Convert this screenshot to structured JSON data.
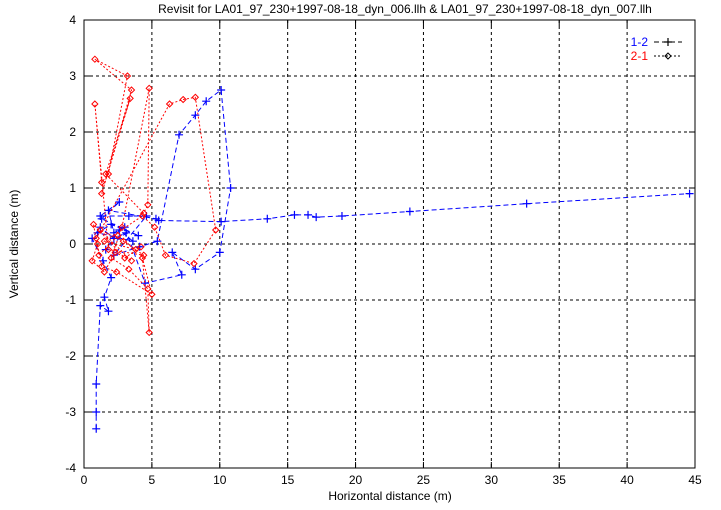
{
  "chart_data": {
    "type": "line",
    "title": "Revisit for LA01_97_230+1997-08-18_dyn_006.llh & LA01_97_230+1997-08-18_dyn_007.llh",
    "xlabel": "Horizontal distance (m)",
    "ylabel": "Vertical distance (m)",
    "xlim": [
      0,
      45
    ],
    "ylim": [
      -4,
      4
    ],
    "xticks": [
      0,
      5,
      10,
      15,
      20,
      25,
      30,
      35,
      40,
      45
    ],
    "yticks": [
      -4,
      -3,
      -2,
      -1,
      0,
      1,
      2,
      3,
      4
    ],
    "grid": true,
    "legend_position": "top-right",
    "series": [
      {
        "name": "1-2",
        "color": "#0000ff",
        "marker": "plus",
        "points": [
          [
            0.9,
            -3.3
          ],
          [
            0.9,
            -3.0
          ],
          [
            0.9,
            -2.5
          ],
          [
            1.2,
            -1.1
          ],
          [
            1.8,
            -1.2
          ],
          [
            1.5,
            -0.95
          ],
          [
            2.0,
            -0.6
          ],
          [
            1.4,
            -0.3
          ],
          [
            0.6,
            0.1
          ],
          [
            1.2,
            0.3
          ],
          [
            2.2,
            0.1
          ],
          [
            3.1,
            0.2
          ],
          [
            1.6,
            -0.1
          ],
          [
            2.6,
            0.25
          ],
          [
            3.6,
            0.05
          ],
          [
            1.0,
            0.2
          ],
          [
            2.0,
            0.35
          ],
          [
            4.0,
            0.15
          ],
          [
            1.3,
            0.45
          ],
          [
            2.6,
            0.75
          ],
          [
            1.2,
            0.5
          ],
          [
            3.3,
            0.5
          ],
          [
            4.6,
            0.5
          ],
          [
            2.2,
            -0.2
          ],
          [
            4.1,
            -0.05
          ],
          [
            5.4,
            0.05
          ],
          [
            7.0,
            1.95
          ],
          [
            8.2,
            2.3
          ],
          [
            9.0,
            2.55
          ],
          [
            10.1,
            2.75
          ],
          [
            10.8,
            1.0
          ],
          [
            10.0,
            -0.15
          ],
          [
            8.2,
            -0.45
          ],
          [
            6.5,
            -0.15
          ],
          [
            7.2,
            -0.55
          ],
          [
            4.5,
            -0.7
          ],
          [
            3.0,
            0.3
          ],
          [
            2.2,
            0.2
          ],
          [
            1.8,
            0.6
          ],
          [
            5.3,
            0.45
          ],
          [
            5.5,
            0.42
          ],
          [
            10.1,
            0.4
          ],
          [
            13.5,
            0.45
          ],
          [
            15.5,
            0.52
          ],
          [
            16.5,
            0.52
          ],
          [
            17.1,
            0.48
          ],
          [
            19.0,
            0.5
          ],
          [
            24.0,
            0.58
          ],
          [
            32.6,
            0.72
          ],
          [
            44.6,
            0.9
          ]
        ]
      },
      {
        "name": "2-1",
        "color": "#ff0000",
        "marker": "diamond",
        "points": [
          [
            1.0,
            0.0
          ],
          [
            0.6,
            -0.3
          ],
          [
            1.5,
            -0.5
          ],
          [
            2.3,
            -0.15
          ],
          [
            3.5,
            -0.3
          ],
          [
            1.2,
            0.25
          ],
          [
            2.9,
            0.05
          ],
          [
            4.4,
            -0.2
          ],
          [
            1.8,
            -0.1
          ],
          [
            0.8,
            2.5
          ],
          [
            1.3,
            1.1
          ],
          [
            1.8,
            1.25
          ],
          [
            3.2,
            3.0
          ],
          [
            0.8,
            3.3
          ],
          [
            3.5,
            2.75
          ],
          [
            1.3,
            0.9
          ],
          [
            3.4,
            2.6
          ],
          [
            1.6,
            1.25
          ],
          [
            4.4,
            0.55
          ],
          [
            4.7,
            0.7
          ],
          [
            4.8,
            2.78
          ],
          [
            2.8,
            0.3
          ],
          [
            2.0,
            -0.25
          ],
          [
            3.3,
            -0.45
          ],
          [
            4.7,
            -0.8
          ],
          [
            4.8,
            -1.58
          ],
          [
            4.3,
            -0.25
          ],
          [
            5.0,
            -0.9
          ],
          [
            2.4,
            -0.5
          ],
          [
            1.3,
            -0.4
          ],
          [
            0.9,
            0.1
          ],
          [
            6.3,
            2.5
          ],
          [
            7.3,
            2.58
          ],
          [
            8.2,
            2.62
          ],
          [
            9.7,
            0.25
          ],
          [
            8.1,
            -0.35
          ],
          [
            6.0,
            -0.2
          ],
          [
            5.2,
            0.3
          ],
          [
            4.3,
            0.5
          ],
          [
            1.5,
            0.05
          ],
          [
            3.8,
            -0.1
          ],
          [
            2.5,
            0.15
          ],
          [
            1.1,
            -0.2
          ],
          [
            0.7,
            0.35
          ],
          [
            3.0,
            -0.25
          ],
          [
            4.2,
            -0.05
          ]
        ]
      }
    ]
  }
}
